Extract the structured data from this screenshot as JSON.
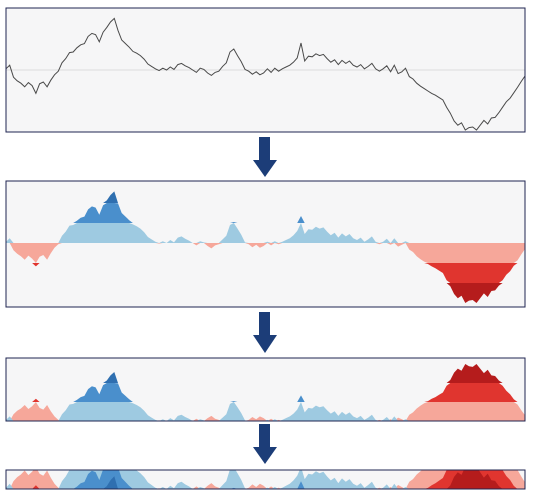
{
  "colors": {
    "background": "#ffffff",
    "panel_fill": "#f6f6f7",
    "panel_border": "#1f2450",
    "baseline": "#dcdcdc",
    "line": "#4a4a4a",
    "arrow": "#1c3d78",
    "positive_bands": [
      "#9ecae1",
      "#4a8fcc",
      "#2f6fb0"
    ],
    "negative_bands": [
      "#f6a79a",
      "#e0352f",
      "#b51c1c"
    ]
  },
  "band_count": 3,
  "series": [
    0.02,
    0.08,
    -0.12,
    -0.18,
    -0.22,
    -0.28,
    -0.21,
    -0.26,
    -0.39,
    -0.23,
    -0.2,
    -0.28,
    -0.17,
    -0.08,
    -0.02,
    0.12,
    0.19,
    0.29,
    0.3,
    0.37,
    0.42,
    0.44,
    0.56,
    0.61,
    0.59,
    0.47,
    0.63,
    0.71,
    0.8,
    0.86,
    0.66,
    0.5,
    0.44,
    0.38,
    0.31,
    0.28,
    0.24,
    0.18,
    0.1,
    0.06,
    0.02,
    -0.01,
    0.03,
    0.0,
    0.05,
    0.01,
    0.09,
    0.11,
    0.07,
    0.04,
    0.0,
    -0.04,
    0.03,
    0.01,
    -0.05,
    -0.09,
    -0.04,
    -0.02,
    0.06,
    0.12,
    0.3,
    0.35,
    0.24,
    0.14,
    0.01,
    -0.02,
    -0.07,
    -0.03,
    -0.08,
    -0.05,
    0.02,
    -0.04,
    0.03,
    -0.02,
    0.02,
    0.05,
    0.08,
    0.13,
    0.2,
    0.45,
    0.15,
    0.23,
    0.22,
    0.27,
    0.24,
    0.26,
    0.19,
    0.13,
    0.17,
    0.09,
    0.16,
    0.11,
    0.15,
    0.08,
    0.05,
    0.09,
    0.02,
    0.06,
    0.11,
    0.02,
    -0.02,
    0.02,
    0.07,
    -0.03,
    0.08,
    -0.06,
    -0.03,
    0.03,
    -0.11,
    -0.15,
    -0.22,
    -0.27,
    -0.31,
    -0.35,
    -0.39,
    -0.42,
    -0.46,
    -0.5,
    -0.62,
    -0.72,
    -0.85,
    -0.92,
    -0.88,
    -1.0,
    -0.96,
    -0.95,
    -1.0,
    -0.92,
    -0.84,
    -0.9,
    -0.8,
    -0.79,
    -0.71,
    -0.62,
    -0.53,
    -0.47,
    -0.38,
    -0.29,
    -0.19,
    -0.1
  ],
  "stages": [
    {
      "mode": "line"
    },
    {
      "mode": "split"
    },
    {
      "mode": "mirror"
    },
    {
      "mode": "mirror-cropped"
    }
  ]
}
